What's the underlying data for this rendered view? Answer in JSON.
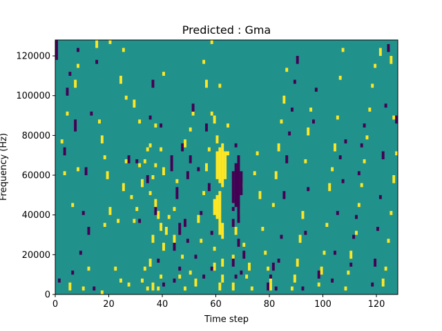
{
  "chart_data": {
    "type": "heatmap",
    "title": "Predicted : Gma",
    "xlabel": "Time step",
    "ylabel": "Frequency (Hz)",
    "xlim": [
      0,
      128
    ],
    "ylim": [
      0,
      128000
    ],
    "x_ticks": [
      0,
      20,
      40,
      60,
      80,
      100,
      120
    ],
    "y_ticks": [
      0,
      20000,
      40000,
      60000,
      80000,
      100000,
      120000
    ],
    "n_time_steps": 128,
    "n_freq_bins": 128,
    "cell_values": {
      "background": 0,
      "high": 1,
      "low": -1
    },
    "colors": {
      "background": "#21918c",
      "high": "#fde725",
      "low": "#440154"
    },
    "high_cells": [
      [
        20,
        126,
        128
      ],
      [
        59,
        12,
        16
      ],
      [
        59,
        22,
        24
      ],
      [
        61,
        104,
        106
      ],
      [
        60,
        58,
        72
      ],
      [
        61,
        56,
        74
      ],
      [
        62,
        54,
        76
      ],
      [
        63,
        58,
        72
      ],
      [
        59,
        40,
        48
      ],
      [
        60,
        38,
        50
      ],
      [
        61,
        30,
        52
      ],
      [
        62,
        28,
        36
      ],
      [
        60,
        76,
        80
      ],
      [
        62,
        14,
        18
      ],
      [
        61,
        2,
        6
      ],
      [
        62,
        6,
        10
      ],
      [
        64,
        84,
        86
      ],
      [
        64,
        70,
        72
      ],
      [
        36,
        2,
        6
      ],
      [
        35,
        14,
        18
      ],
      [
        36,
        26,
        30
      ],
      [
        37,
        42,
        48
      ],
      [
        35,
        50,
        52
      ],
      [
        36,
        58,
        60
      ],
      [
        37,
        64,
        66
      ],
      [
        35,
        74,
        76
      ],
      [
        38,
        38,
        42
      ],
      [
        39,
        32,
        36
      ],
      [
        40,
        22,
        26
      ],
      [
        39,
        8,
        10
      ],
      [
        38,
        2,
        4
      ],
      [
        41,
        30,
        34
      ],
      [
        42,
        38,
        40
      ],
      [
        40,
        60,
        64
      ],
      [
        39,
        72,
        74
      ],
      [
        37,
        84,
        86
      ],
      [
        40,
        110,
        112
      ],
      [
        29,
        36,
        38
      ],
      [
        29,
        94,
        98
      ],
      [
        31,
        86,
        88
      ],
      [
        34,
        2,
        4
      ],
      [
        32,
        6,
        8
      ],
      [
        33,
        12,
        14
      ],
      [
        31,
        64,
        66
      ],
      [
        33,
        66,
        68
      ],
      [
        32,
        54,
        58
      ],
      [
        30,
        42,
        44
      ],
      [
        34,
        72,
        74
      ],
      [
        26,
        66,
        68
      ],
      [
        28,
        48,
        50
      ],
      [
        27,
        4,
        6
      ],
      [
        24,
        6,
        8
      ],
      [
        22,
        12,
        14
      ],
      [
        17,
        0,
        2
      ],
      [
        12,
        12,
        14
      ],
      [
        10,
        2,
        4
      ],
      [
        5,
        2,
        6
      ],
      [
        6,
        44,
        46
      ],
      [
        8,
        62,
        64
      ],
      [
        3,
        60,
        62
      ],
      [
        4,
        90,
        92
      ],
      [
        2,
        76,
        78
      ],
      [
        7,
        104,
        108
      ],
      [
        8,
        114,
        116
      ],
      [
        18,
        34,
        36
      ],
      [
        19,
        58,
        62
      ],
      [
        18,
        68,
        70
      ],
      [
        20,
        40,
        44
      ],
      [
        23,
        36,
        38
      ],
      [
        25,
        52,
        56
      ],
      [
        17,
        76,
        80
      ],
      [
        16,
        86,
        88
      ],
      [
        26,
        98,
        100
      ],
      [
        24,
        106,
        110
      ],
      [
        25,
        122,
        124
      ],
      [
        15,
        124,
        128
      ],
      [
        44,
        26,
        30
      ],
      [
        44,
        42,
        44
      ],
      [
        45,
        56,
        58
      ],
      [
        46,
        8,
        10
      ],
      [
        47,
        18,
        20
      ],
      [
        48,
        2,
        4
      ],
      [
        50,
        10,
        12
      ],
      [
        52,
        4,
        8
      ],
      [
        53,
        36,
        40
      ],
      [
        54,
        26,
        28
      ],
      [
        55,
        50,
        52
      ],
      [
        56,
        62,
        66
      ],
      [
        57,
        72,
        74
      ],
      [
        58,
        90,
        92
      ],
      [
        56,
        104,
        108
      ],
      [
        55,
        116,
        118
      ],
      [
        58,
        126,
        128
      ],
      [
        59,
        86,
        90
      ],
      [
        48,
        74,
        78
      ],
      [
        50,
        82,
        84
      ],
      [
        51,
        90,
        92
      ],
      [
        66,
        2,
        6
      ],
      [
        66,
        18,
        20
      ],
      [
        67,
        30,
        34
      ],
      [
        68,
        40,
        44
      ],
      [
        69,
        54,
        56
      ],
      [
        70,
        24,
        26
      ],
      [
        71,
        8,
        10
      ],
      [
        72,
        12,
        16
      ],
      [
        73,
        2,
        4
      ],
      [
        74,
        60,
        62
      ],
      [
        75,
        70,
        72
      ],
      [
        76,
        48,
        52
      ],
      [
        77,
        32,
        34
      ],
      [
        78,
        20,
        22
      ],
      [
        79,
        12,
        14
      ],
      [
        80,
        2,
        6
      ],
      [
        80,
        6,
        8
      ],
      [
        81,
        44,
        46
      ],
      [
        82,
        58,
        62
      ],
      [
        83,
        72,
        76
      ],
      [
        84,
        86,
        88
      ],
      [
        85,
        96,
        100
      ],
      [
        86,
        112,
        114
      ],
      [
        88,
        2,
        4
      ],
      [
        89,
        6,
        10
      ],
      [
        90,
        14,
        18
      ],
      [
        91,
        26,
        30
      ],
      [
        92,
        38,
        42
      ],
      [
        93,
        66,
        68
      ],
      [
        94,
        80,
        84
      ],
      [
        95,
        92,
        94
      ],
      [
        98,
        4,
        6
      ],
      [
        99,
        10,
        14
      ],
      [
        100,
        20,
        22
      ],
      [
        101,
        34,
        36
      ],
      [
        102,
        52,
        56
      ],
      [
        103,
        62,
        64
      ],
      [
        104,
        72,
        76
      ],
      [
        105,
        88,
        90
      ],
      [
        106,
        108,
        110
      ],
      [
        107,
        122,
        124
      ],
      [
        108,
        2,
        4
      ],
      [
        109,
        10,
        12
      ],
      [
        110,
        18,
        22
      ],
      [
        112,
        30,
        32
      ],
      [
        113,
        44,
        46
      ],
      [
        114,
        54,
        56
      ],
      [
        115,
        66,
        68
      ],
      [
        116,
        78,
        80
      ],
      [
        117,
        92,
        94
      ],
      [
        118,
        104,
        106
      ],
      [
        119,
        114,
        116
      ],
      [
        121,
        120,
        124
      ],
      [
        122,
        4,
        8
      ],
      [
        123,
        12,
        14
      ],
      [
        124,
        26,
        28
      ],
      [
        125,
        40,
        42
      ],
      [
        126,
        56,
        60
      ],
      [
        127,
        70,
        72
      ],
      [
        126,
        88,
        90
      ],
      [
        125,
        116,
        120
      ],
      [
        124,
        124,
        126
      ]
    ],
    "low_cells": [
      [
        0,
        118,
        128
      ],
      [
        1,
        6,
        8
      ],
      [
        3,
        70,
        74
      ],
      [
        4,
        100,
        104
      ],
      [
        5,
        110,
        112
      ],
      [
        6,
        10,
        12
      ],
      [
        7,
        82,
        88
      ],
      [
        8,
        122,
        124
      ],
      [
        9,
        20,
        22
      ],
      [
        10,
        40,
        42
      ],
      [
        11,
        60,
        64
      ],
      [
        12,
        30,
        34
      ],
      [
        13,
        90,
        92
      ],
      [
        14,
        2,
        4
      ],
      [
        15,
        116,
        118
      ],
      [
        27,
        66,
        70
      ],
      [
        30,
        66,
        68
      ],
      [
        31,
        36,
        38
      ],
      [
        34,
        56,
        60
      ],
      [
        35,
        88,
        90
      ],
      [
        36,
        104,
        108
      ],
      [
        37,
        40,
        44
      ],
      [
        38,
        16,
        18
      ],
      [
        39,
        84,
        86
      ],
      [
        40,
        4,
        6
      ],
      [
        43,
        62,
        70
      ],
      [
        44,
        22,
        26
      ],
      [
        44,
        6,
        8
      ],
      [
        45,
        48,
        54
      ],
      [
        46,
        30,
        36
      ],
      [
        46,
        12,
        14
      ],
      [
        47,
        72,
        76
      ],
      [
        48,
        34,
        38
      ],
      [
        49,
        58,
        62
      ],
      [
        49,
        26,
        28
      ],
      [
        50,
        66,
        70
      ],
      [
        51,
        92,
        96
      ],
      [
        52,
        18,
        20
      ],
      [
        53,
        62,
        64
      ],
      [
        54,
        40,
        42
      ],
      [
        55,
        8,
        10
      ],
      [
        56,
        82,
        86
      ],
      [
        57,
        52,
        56
      ],
      [
        58,
        12,
        14
      ],
      [
        58,
        30,
        32
      ],
      [
        66,
        34,
        38
      ],
      [
        66,
        42,
        44
      ],
      [
        66,
        46,
        62
      ],
      [
        67,
        44,
        66
      ],
      [
        68,
        36,
        70
      ],
      [
        69,
        50,
        62
      ],
      [
        68,
        24,
        28
      ],
      [
        66,
        14,
        18
      ],
      [
        67,
        8,
        10
      ],
      [
        69,
        10,
        12
      ],
      [
        70,
        18,
        22
      ],
      [
        67,
        74,
        76
      ],
      [
        79,
        2,
        6
      ],
      [
        80,
        8,
        10
      ],
      [
        81,
        12,
        16
      ],
      [
        82,
        2,
        4
      ],
      [
        83,
        16,
        18
      ],
      [
        84,
        28,
        30
      ],
      [
        85,
        48,
        52
      ],
      [
        86,
        66,
        70
      ],
      [
        87,
        80,
        82
      ],
      [
        88,
        92,
        94
      ],
      [
        89,
        106,
        108
      ],
      [
        90,
        116,
        120
      ],
      [
        92,
        2,
        4
      ],
      [
        93,
        30,
        32
      ],
      [
        94,
        52,
        54
      ],
      [
        96,
        86,
        88
      ],
      [
        97,
        102,
        104
      ],
      [
        98,
        8,
        12
      ],
      [
        103,
        6,
        8
      ],
      [
        104,
        20,
        22
      ],
      [
        105,
        40,
        42
      ],
      [
        106,
        68,
        70
      ],
      [
        107,
        56,
        58
      ],
      [
        108,
        76,
        78
      ],
      [
        110,
        14,
        16
      ],
      [
        111,
        28,
        30
      ],
      [
        112,
        38,
        40
      ],
      [
        113,
        60,
        62
      ],
      [
        114,
        74,
        76
      ],
      [
        115,
        84,
        86
      ],
      [
        118,
        4,
        6
      ],
      [
        119,
        14,
        18
      ],
      [
        120,
        32,
        34
      ],
      [
        121,
        48,
        50
      ],
      [
        122,
        68,
        72
      ],
      [
        123,
        94,
        96
      ],
      [
        124,
        122,
        126
      ],
      [
        127,
        86,
        90
      ]
    ]
  }
}
